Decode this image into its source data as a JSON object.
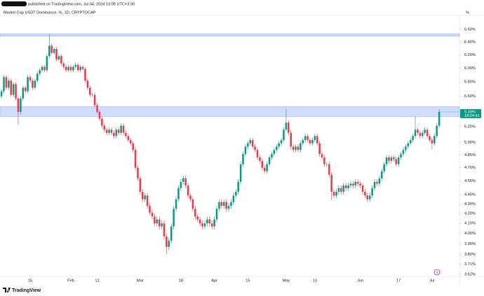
{
  "header": "published on TradingView.com, Jul 04, 2024 13:05 UTC+3:30",
  "logo": "TradingView",
  "chart_data": {
    "type": "candlestick",
    "title": "Market Cap USDT Dominance, %, 1D, CRYPTOCAP",
    "axis_unit": "%",
    "log": true,
    "grid": false,
    "up_color": "#089981",
    "down_color": "#f23645",
    "zone_color": "#2962ff",
    "ylim": [
      3.6,
      6.83
    ],
    "yticks": [
      {
        "value": 6.6,
        "label": "6.60%"
      },
      {
        "value": 6.4,
        "label": "6.40%"
      },
      {
        "value": 6.2,
        "label": "6.20%"
      },
      {
        "value": 6.0,
        "label": "6.00%"
      },
      {
        "value": 5.8,
        "label": "5.80%"
      },
      {
        "value": 5.6,
        "label": "5.60%"
      },
      {
        "value": 5.2,
        "label": "5.20%"
      },
      {
        "value": 5.0,
        "label": "5.00%"
      },
      {
        "value": 4.85,
        "label": "4.85%"
      },
      {
        "value": 4.7,
        "label": "4.70%"
      },
      {
        "value": 4.55,
        "label": "4.55%"
      },
      {
        "value": 4.4,
        "label": "4.40%"
      },
      {
        "value": 4.3,
        "label": "4.30%"
      },
      {
        "value": 4.2,
        "label": "4.20%"
      },
      {
        "value": 4.1,
        "label": "4.10%"
      },
      {
        "value": 4.0,
        "label": "4.00%"
      },
      {
        "value": 3.9,
        "label": "3.90%"
      },
      {
        "value": 3.8,
        "label": "3.80%"
      },
      {
        "value": 3.71,
        "label": "3.71%"
      },
      {
        "value": 3.62,
        "label": "3.62%"
      }
    ],
    "zones": [
      {
        "low": 6.49,
        "high": 6.53
      },
      {
        "low": 5.33,
        "high": 5.46
      }
    ],
    "last_price_label": "5.39%",
    "countdown": "18:24:41",
    "categories": [
      null,
      null,
      null,
      null,
      null,
      null,
      null,
      null,
      null,
      null,
      null,
      null,
      "15",
      null,
      null,
      null,
      null,
      null,
      null,
      null,
      null,
      null,
      null,
      null,
      null,
      null,
      null,
      null,
      null,
      "Feb",
      null,
      null,
      null,
      null,
      null,
      null,
      null,
      null,
      null,
      null,
      "12",
      null,
      null,
      null,
      null,
      null,
      null,
      null,
      null,
      null,
      null,
      null,
      null,
      null,
      null,
      null,
      null,
      null,
      "Mar",
      null,
      null,
      null,
      null,
      null,
      null,
      null,
      null,
      null,
      null,
      null,
      null,
      null,
      null,
      null,
      null,
      "18",
      null,
      null,
      null,
      null,
      null,
      null,
      null,
      null,
      null,
      null,
      null,
      null,
      null,
      "Apr",
      null,
      null,
      null,
      null,
      null,
      null,
      null,
      null,
      null,
      null,
      null,
      null,
      null,
      "15",
      null,
      null,
      null,
      null,
      null,
      null,
      null,
      null,
      null,
      null,
      null,
      null,
      null,
      null,
      null,
      "May",
      null,
      null,
      null,
      null,
      null,
      null,
      null,
      null,
      null,
      null,
      null,
      "13",
      null,
      null,
      null,
      null,
      null,
      null,
      null,
      null,
      null,
      null,
      null,
      null,
      null,
      null,
      null,
      null,
      null,
      null,
      "Jun",
      null,
      null,
      null,
      null,
      null,
      null,
      null,
      null,
      null,
      null,
      null,
      null,
      null,
      null,
      null,
      "17",
      null,
      null,
      null,
      null,
      null,
      null,
      null,
      null,
      null,
      null,
      null,
      null,
      null,
      "Jul",
      null,
      null,
      null
    ],
    "open": [
      5.6,
      5.67,
      5.87,
      5.72,
      5.82,
      5.62,
      5.77,
      5.57,
      5.39,
      5.57,
      5.72,
      5.67,
      5.87,
      5.82,
      5.72,
      5.82,
      5.92,
      5.97,
      6.02,
      5.97,
      6.18,
      6.34,
      6.23,
      6.29,
      6.13,
      6.18,
      6.07,
      6.02,
      5.97,
      6.02,
      5.97,
      6.02,
      6.05,
      5.97,
      6.02,
      5.99,
      5.82,
      5.72,
      5.62,
      5.62,
      5.48,
      5.39,
      5.3,
      5.21,
      5.16,
      5.12,
      5.16,
      5.12,
      5.08,
      5.16,
      5.12,
      5.21,
      5.12,
      5.08,
      5.03,
      4.99,
      4.91,
      4.7,
      4.58,
      4.43,
      4.35,
      4.39,
      4.28,
      4.21,
      4.17,
      4.1,
      4.14,
      4.07,
      4.1,
      3.97,
      3.87,
      3.93,
      4.07,
      4.25,
      4.35,
      4.47,
      4.54,
      4.58,
      4.5,
      4.39,
      4.35,
      4.25,
      4.17,
      4.14,
      4.1,
      4.07,
      4.1,
      4.14,
      4.1,
      4.07,
      4.14,
      4.25,
      4.32,
      4.28,
      4.32,
      4.25,
      4.28,
      4.32,
      4.39,
      4.43,
      4.54,
      4.74,
      4.86,
      4.95,
      4.99,
      5.03,
      4.95,
      4.91,
      4.82,
      4.78,
      4.7,
      4.66,
      4.74,
      4.82,
      4.86,
      4.91,
      4.95,
      4.99,
      5.03,
      5.16,
      5.25,
      5.12,
      4.95,
      4.91,
      4.95,
      4.91,
      4.99,
      5.03,
      5.08,
      5.03,
      4.99,
      5.03,
      5.08,
      4.99,
      4.86,
      4.82,
      4.74,
      4.74,
      4.62,
      4.43,
      4.39,
      4.43,
      4.47,
      4.43,
      4.5,
      4.47,
      4.5,
      4.52,
      4.5,
      4.54,
      4.52,
      4.5,
      4.43,
      4.39,
      4.35,
      4.39,
      4.47,
      4.54,
      4.52,
      4.58,
      4.66,
      4.74,
      4.82,
      4.78,
      4.82,
      4.8,
      4.74,
      4.82,
      4.86,
      4.91,
      4.95,
      4.99,
      5.03,
      5.08,
      5.16,
      5.12,
      5.08,
      5.12,
      5.16,
      5.08,
      5.03,
      4.99,
      5.08,
      5.21
    ],
    "high": [
      5.7,
      5.9,
      5.9,
      5.85,
      5.85,
      5.8,
      5.8,
      5.6,
      5.6,
      5.75,
      5.75,
      5.9,
      5.9,
      5.85,
      5.85,
      5.95,
      6.0,
      6.05,
      6.05,
      6.21,
      6.52,
      6.37,
      6.32,
      6.32,
      6.21,
      6.21,
      6.1,
      6.05,
      6.05,
      6.05,
      6.05,
      6.08,
      6.08,
      6.05,
      6.05,
      6.02,
      5.85,
      5.75,
      5.65,
      5.65,
      5.51,
      5.42,
      5.33,
      5.24,
      5.19,
      5.19,
      5.19,
      5.15,
      5.19,
      5.19,
      5.24,
      5.24,
      5.15,
      5.11,
      5.06,
      5.02,
      4.94,
      4.73,
      4.61,
      4.46,
      4.42,
      4.42,
      4.31,
      4.24,
      4.2,
      4.17,
      4.17,
      4.13,
      4.13,
      4.0,
      3.96,
      4.1,
      4.28,
      4.38,
      4.5,
      4.57,
      4.61,
      4.61,
      4.53,
      4.42,
      4.38,
      4.28,
      4.2,
      4.17,
      4.13,
      4.13,
      4.17,
      4.17,
      4.13,
      4.17,
      4.28,
      4.35,
      4.35,
      4.35,
      4.35,
      4.31,
      4.35,
      4.42,
      4.46,
      4.57,
      4.77,
      4.89,
      4.98,
      5.02,
      5.06,
      5.06,
      4.98,
      4.94,
      4.85,
      4.81,
      4.73,
      4.77,
      4.85,
      4.89,
      4.94,
      4.98,
      5.02,
      5.06,
      5.19,
      5.43,
      5.28,
      5.15,
      4.98,
      4.98,
      4.98,
      5.02,
      5.06,
      5.11,
      5.11,
      5.06,
      5.06,
      5.11,
      5.11,
      5.02,
      4.89,
      4.85,
      4.77,
      4.77,
      4.65,
      4.46,
      4.46,
      4.5,
      4.5,
      4.53,
      4.53,
      4.53,
      4.55,
      4.55,
      4.57,
      4.57,
      4.55,
      4.53,
      4.46,
      4.42,
      4.42,
      4.5,
      4.57,
      4.57,
      4.61,
      4.69,
      4.77,
      4.85,
      4.85,
      4.85,
      4.85,
      4.83,
      4.85,
      4.89,
      4.94,
      4.98,
      5.02,
      5.06,
      5.11,
      5.33,
      5.19,
      5.15,
      5.15,
      5.19,
      5.19,
      5.11,
      5.06,
      5.11,
      5.24,
      5.43
    ],
    "low": [
      5.57,
      5.64,
      5.69,
      5.69,
      5.59,
      5.59,
      5.54,
      5.22,
      5.36,
      5.54,
      5.64,
      5.64,
      5.79,
      5.69,
      5.69,
      5.79,
      5.89,
      5.94,
      5.94,
      5.94,
      6.15,
      6.2,
      6.2,
      6.1,
      6.1,
      6.04,
      5.99,
      5.94,
      5.94,
      5.94,
      5.94,
      5.99,
      5.94,
      5.94,
      5.96,
      5.79,
      5.69,
      5.59,
      5.59,
      5.45,
      5.36,
      5.27,
      5.18,
      5.13,
      5.09,
      5.09,
      5.09,
      5.05,
      5.05,
      5.09,
      5.09,
      5.09,
      5.05,
      5.0,
      4.96,
      4.88,
      4.67,
      4.55,
      4.4,
      4.32,
      4.32,
      4.25,
      4.18,
      4.14,
      4.07,
      4.07,
      4.04,
      4.04,
      3.94,
      3.8,
      3.84,
      3.9,
      4.04,
      4.22,
      4.32,
      4.44,
      4.51,
      4.47,
      4.36,
      4.32,
      4.22,
      4.14,
      4.11,
      4.07,
      4.04,
      4.04,
      4.07,
      4.07,
      4.04,
      4.04,
      4.11,
      4.22,
      4.25,
      4.25,
      4.22,
      4.22,
      4.25,
      4.29,
      4.36,
      4.4,
      4.51,
      4.71,
      4.83,
      4.92,
      4.96,
      4.92,
      4.88,
      4.79,
      4.75,
      4.67,
      4.63,
      4.63,
      4.71,
      4.79,
      4.83,
      4.88,
      4.92,
      4.96,
      5.0,
      5.13,
      5.09,
      4.92,
      4.88,
      4.88,
      4.88,
      4.88,
      4.96,
      5.0,
      5.0,
      4.96,
      4.96,
      5.0,
      4.96,
      4.83,
      4.79,
      4.71,
      4.71,
      4.59,
      4.34,
      4.36,
      4.36,
      4.4,
      4.4,
      4.4,
      4.44,
      4.44,
      4.47,
      4.47,
      4.47,
      4.49,
      4.47,
      4.4,
      4.36,
      4.32,
      4.32,
      4.36,
      4.44,
      4.49,
      4.49,
      4.55,
      4.63,
      4.71,
      4.75,
      4.75,
      4.77,
      4.71,
      4.71,
      4.79,
      4.83,
      4.88,
      4.92,
      4.96,
      5.0,
      5.05,
      5.09,
      5.05,
      5.05,
      5.09,
      5.05,
      5.0,
      4.92,
      4.96,
      5.05,
      5.18
    ],
    "close": [
      5.67,
      5.87,
      5.72,
      5.82,
      5.62,
      5.77,
      5.57,
      5.39,
      5.57,
      5.72,
      5.67,
      5.87,
      5.82,
      5.72,
      5.82,
      5.92,
      5.97,
      6.02,
      5.97,
      6.18,
      6.34,
      6.23,
      6.29,
      6.13,
      6.18,
      6.07,
      6.02,
      5.97,
      6.02,
      5.97,
      6.02,
      6.05,
      5.97,
      6.02,
      5.99,
      5.82,
      5.72,
      5.62,
      5.62,
      5.48,
      5.39,
      5.3,
      5.21,
      5.16,
      5.12,
      5.16,
      5.12,
      5.08,
      5.16,
      5.12,
      5.21,
      5.12,
      5.08,
      5.03,
      4.99,
      4.91,
      4.7,
      4.58,
      4.43,
      4.35,
      4.39,
      4.28,
      4.21,
      4.17,
      4.1,
      4.14,
      4.07,
      4.1,
      3.97,
      3.87,
      3.93,
      4.07,
      4.25,
      4.35,
      4.47,
      4.54,
      4.58,
      4.5,
      4.39,
      4.35,
      4.25,
      4.17,
      4.14,
      4.1,
      4.07,
      4.1,
      4.14,
      4.1,
      4.07,
      4.14,
      4.25,
      4.32,
      4.28,
      4.32,
      4.25,
      4.28,
      4.32,
      4.39,
      4.43,
      4.54,
      4.74,
      4.86,
      4.95,
      4.99,
      5.03,
      4.95,
      4.91,
      4.82,
      4.78,
      4.7,
      4.66,
      4.74,
      4.82,
      4.86,
      4.91,
      4.95,
      4.99,
      5.03,
      5.16,
      5.25,
      5.12,
      4.95,
      4.91,
      4.95,
      4.91,
      4.99,
      5.03,
      5.08,
      5.03,
      4.99,
      5.03,
      5.08,
      4.99,
      4.86,
      4.82,
      4.74,
      4.74,
      4.62,
      4.43,
      4.39,
      4.43,
      4.47,
      4.43,
      4.5,
      4.47,
      4.5,
      4.52,
      4.5,
      4.54,
      4.52,
      4.5,
      4.43,
      4.39,
      4.35,
      4.39,
      4.47,
      4.54,
      4.52,
      4.58,
      4.66,
      4.74,
      4.82,
      4.78,
      4.82,
      4.8,
      4.74,
      4.82,
      4.86,
      4.91,
      4.95,
      4.99,
      5.03,
      5.08,
      5.16,
      5.12,
      5.08,
      5.12,
      5.16,
      5.08,
      5.03,
      4.99,
      5.08,
      5.21,
      5.39
    ]
  }
}
